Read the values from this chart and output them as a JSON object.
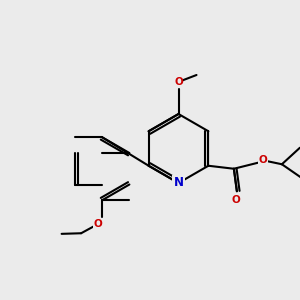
{
  "bg_color": "#ebebeb",
  "black": "#000000",
  "blue": "#0000cc",
  "red": "#cc0000",
  "lw": 1.5,
  "lw_thick": 1.5,
  "font_size": 7.5,
  "xlim": [
    0,
    10
  ],
  "ylim": [
    0,
    10
  ],
  "figsize": [
    3.0,
    3.0
  ],
  "dpi": 100
}
